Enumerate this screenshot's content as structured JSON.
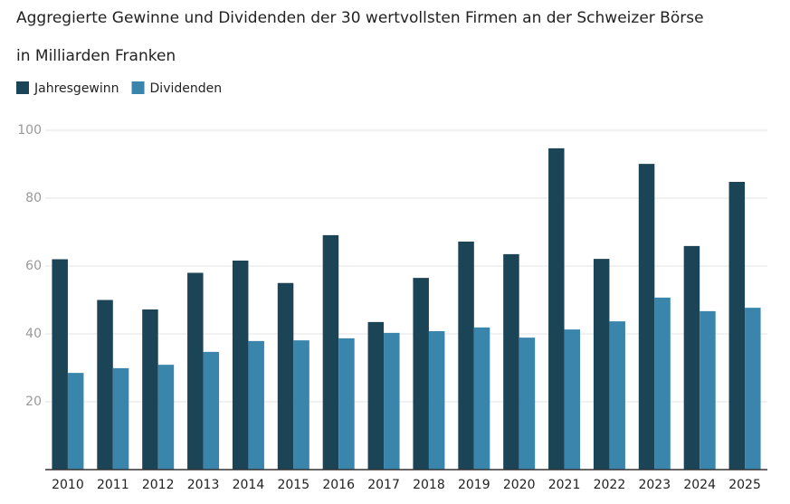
{
  "chart_data": {
    "type": "bar",
    "title": "Aggregierte Gewinne und Dividenden der 30 wertvollsten Firmen an der Schweizer Börse",
    "subtitle": "in Milliarden Franken",
    "categories": [
      "2010",
      "2011",
      "2012",
      "2013",
      "2014",
      "2015",
      "2016",
      "2017",
      "2018",
      "2019",
      "2020",
      "2021",
      "2022",
      "2023",
      "2024",
      "2025"
    ],
    "series": [
      {
        "name": "Jahresgewinn",
        "color": "#1c4457",
        "values": [
          62,
          50,
          47.2,
          58,
          61.6,
          55,
          69.1,
          43.5,
          56.5,
          67.2,
          63.5,
          94.7,
          62.1,
          90.1,
          65.9,
          84.8
        ]
      },
      {
        "name": "Dividenden",
        "color": "#3a85ac",
        "values": [
          28.5,
          29.9,
          30.9,
          34.7,
          37.9,
          38.1,
          38.7,
          40.3,
          40.8,
          41.9,
          38.9,
          41.3,
          43.7,
          50.7,
          46.7,
          47.7
        ]
      }
    ],
    "ylim": [
      0,
      100
    ],
    "yticks": [
      20,
      40,
      60,
      80,
      100
    ],
    "grid": true,
    "legend": "top-left"
  }
}
